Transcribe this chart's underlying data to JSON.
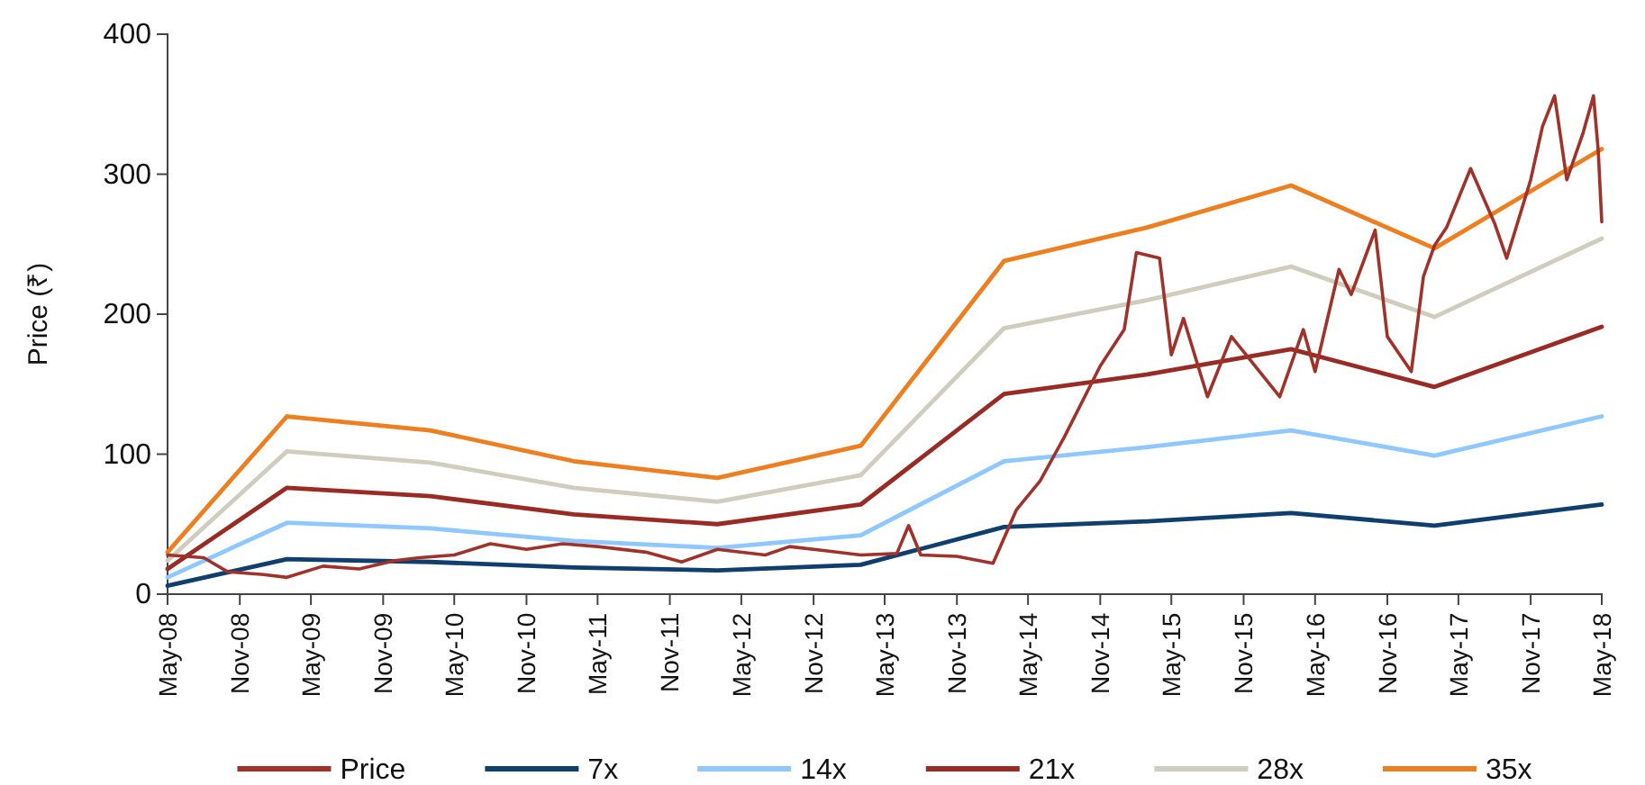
{
  "chart_data": {
    "type": "line",
    "ylabel": "Price (₹)",
    "xlim": [
      "2008-05",
      "2018-05"
    ],
    "ylim": [
      0,
      400
    ],
    "yticks": [
      0,
      100,
      200,
      300,
      400
    ],
    "xticks": [
      {
        "value": "2008-05",
        "label": "May-08"
      },
      {
        "value": "2008-11",
        "label": "Nov-08"
      },
      {
        "value": "2009-05",
        "label": "May-09"
      },
      {
        "value": "2009-11",
        "label": "Nov-09"
      },
      {
        "value": "2010-05",
        "label": "May-10"
      },
      {
        "value": "2010-11",
        "label": "Nov-10"
      },
      {
        "value": "2011-05",
        "label": "May-11"
      },
      {
        "value": "2011-11",
        "label": "Nov-11"
      },
      {
        "value": "2012-05",
        "label": "May-12"
      },
      {
        "value": "2012-11",
        "label": "Nov-12"
      },
      {
        "value": "2013-05",
        "label": "May-13"
      },
      {
        "value": "2013-11",
        "label": "Nov-13"
      },
      {
        "value": "2014-05",
        "label": "May-14"
      },
      {
        "value": "2014-11",
        "label": "Nov-14"
      },
      {
        "value": "2015-05",
        "label": "May-15"
      },
      {
        "value": "2015-11",
        "label": "Nov-15"
      },
      {
        "value": "2016-05",
        "label": "May-16"
      },
      {
        "value": "2016-11",
        "label": "Nov-16"
      },
      {
        "value": "2017-05",
        "label": "May-17"
      },
      {
        "value": "2017-11",
        "label": "Nov-17"
      },
      {
        "value": "2018-05",
        "label": "May-18"
      }
    ],
    "grid": false,
    "legend": "bottom",
    "series": [
      {
        "name": "Price",
        "color": "#a0322a",
        "x": [
          "2008-05",
          "2008-08",
          "2008-10",
          "2009-01",
          "2009-03",
          "2009-06",
          "2009-09",
          "2009-12",
          "2010-02",
          "2010-05",
          "2010-08",
          "2010-11",
          "2011-02",
          "2011-05",
          "2011-09",
          "2011-12",
          "2012-03",
          "2012-07",
          "2012-09",
          "2012-12",
          "2013-03",
          "2013-06",
          "2013-07",
          "2013-08",
          "2013-11",
          "2014-02",
          "2014-04",
          "2014-06",
          "2014-08",
          "2014-11",
          "2015-01",
          "2015-02",
          "2015-04",
          "2015-05",
          "2015-06",
          "2015-08",
          "2015-10",
          "2016-02",
          "2016-04",
          "2016-05",
          "2016-07",
          "2016-08",
          "2016-10",
          "2016-11",
          "2017-01",
          "2017-02",
          "2017-03",
          "2017-04",
          "2017-06",
          "2017-08",
          "2017-09",
          "2017-11",
          "2017-12",
          "2018-01",
          "2018-02",
          "2018-03-15",
          "2018-04-10",
          "2018-04-22",
          "2018-05"
        ],
        "values": [
          28,
          26,
          16,
          14,
          12,
          20,
          18,
          24,
          26,
          28,
          36,
          32,
          36,
          34,
          30,
          23,
          32,
          28,
          34,
          31,
          28,
          29,
          49,
          28,
          27,
          22,
          60,
          81,
          112,
          163,
          189,
          244,
          240,
          171,
          197,
          141,
          184,
          141,
          189,
          159,
          232,
          214,
          260,
          184,
          159,
          227,
          249,
          262,
          304,
          265,
          240,
          296,
          334,
          356,
          296,
          330,
          356,
          317,
          266
        ]
      },
      {
        "name": "7x",
        "color": "#0e3f6e",
        "x": [
          "2008-05",
          "2009-03",
          "2010-03",
          "2011-03",
          "2012-03",
          "2013-03",
          "2014-03",
          "2015-03",
          "2016-03",
          "2017-03",
          "2018-05"
        ],
        "values": [
          6,
          25,
          23,
          19,
          17,
          21,
          48,
          52,
          58,
          49,
          64
        ]
      },
      {
        "name": "14x",
        "color": "#8fc8ff",
        "x": [
          "2008-05",
          "2009-03",
          "2010-03",
          "2011-03",
          "2012-03",
          "2013-03",
          "2014-03",
          "2015-03",
          "2016-03",
          "2017-03",
          "2018-05"
        ],
        "values": [
          12,
          51,
          47,
          38,
          33,
          42,
          95,
          105,
          117,
          99,
          127
        ]
      },
      {
        "name": "21x",
        "color": "#9a2a24",
        "x": [
          "2008-05",
          "2009-03",
          "2010-03",
          "2011-03",
          "2012-03",
          "2013-03",
          "2014-03",
          "2015-03",
          "2016-03",
          "2017-03",
          "2018-05"
        ],
        "values": [
          18,
          76,
          70,
          57,
          50,
          64,
          143,
          157,
          175,
          148,
          191
        ]
      },
      {
        "name": "28x",
        "color": "#d0cdbf",
        "x": [
          "2008-05",
          "2009-03",
          "2010-03",
          "2011-03",
          "2012-03",
          "2013-03",
          "2014-03",
          "2015-03",
          "2016-03",
          "2017-03",
          "2018-05"
        ],
        "values": [
          24,
          102,
          94,
          76,
          66,
          85,
          190,
          210,
          234,
          198,
          254
        ]
      },
      {
        "name": "35x",
        "color": "#ee7e1e",
        "x": [
          "2008-05",
          "2009-03",
          "2010-03",
          "2011-03",
          "2012-03",
          "2013-03",
          "2014-03",
          "2015-03",
          "2016-03",
          "2017-03",
          "2018-05"
        ],
        "values": [
          30,
          127,
          117,
          95,
          83,
          106,
          238,
          262,
          292,
          247,
          318
        ]
      }
    ]
  }
}
